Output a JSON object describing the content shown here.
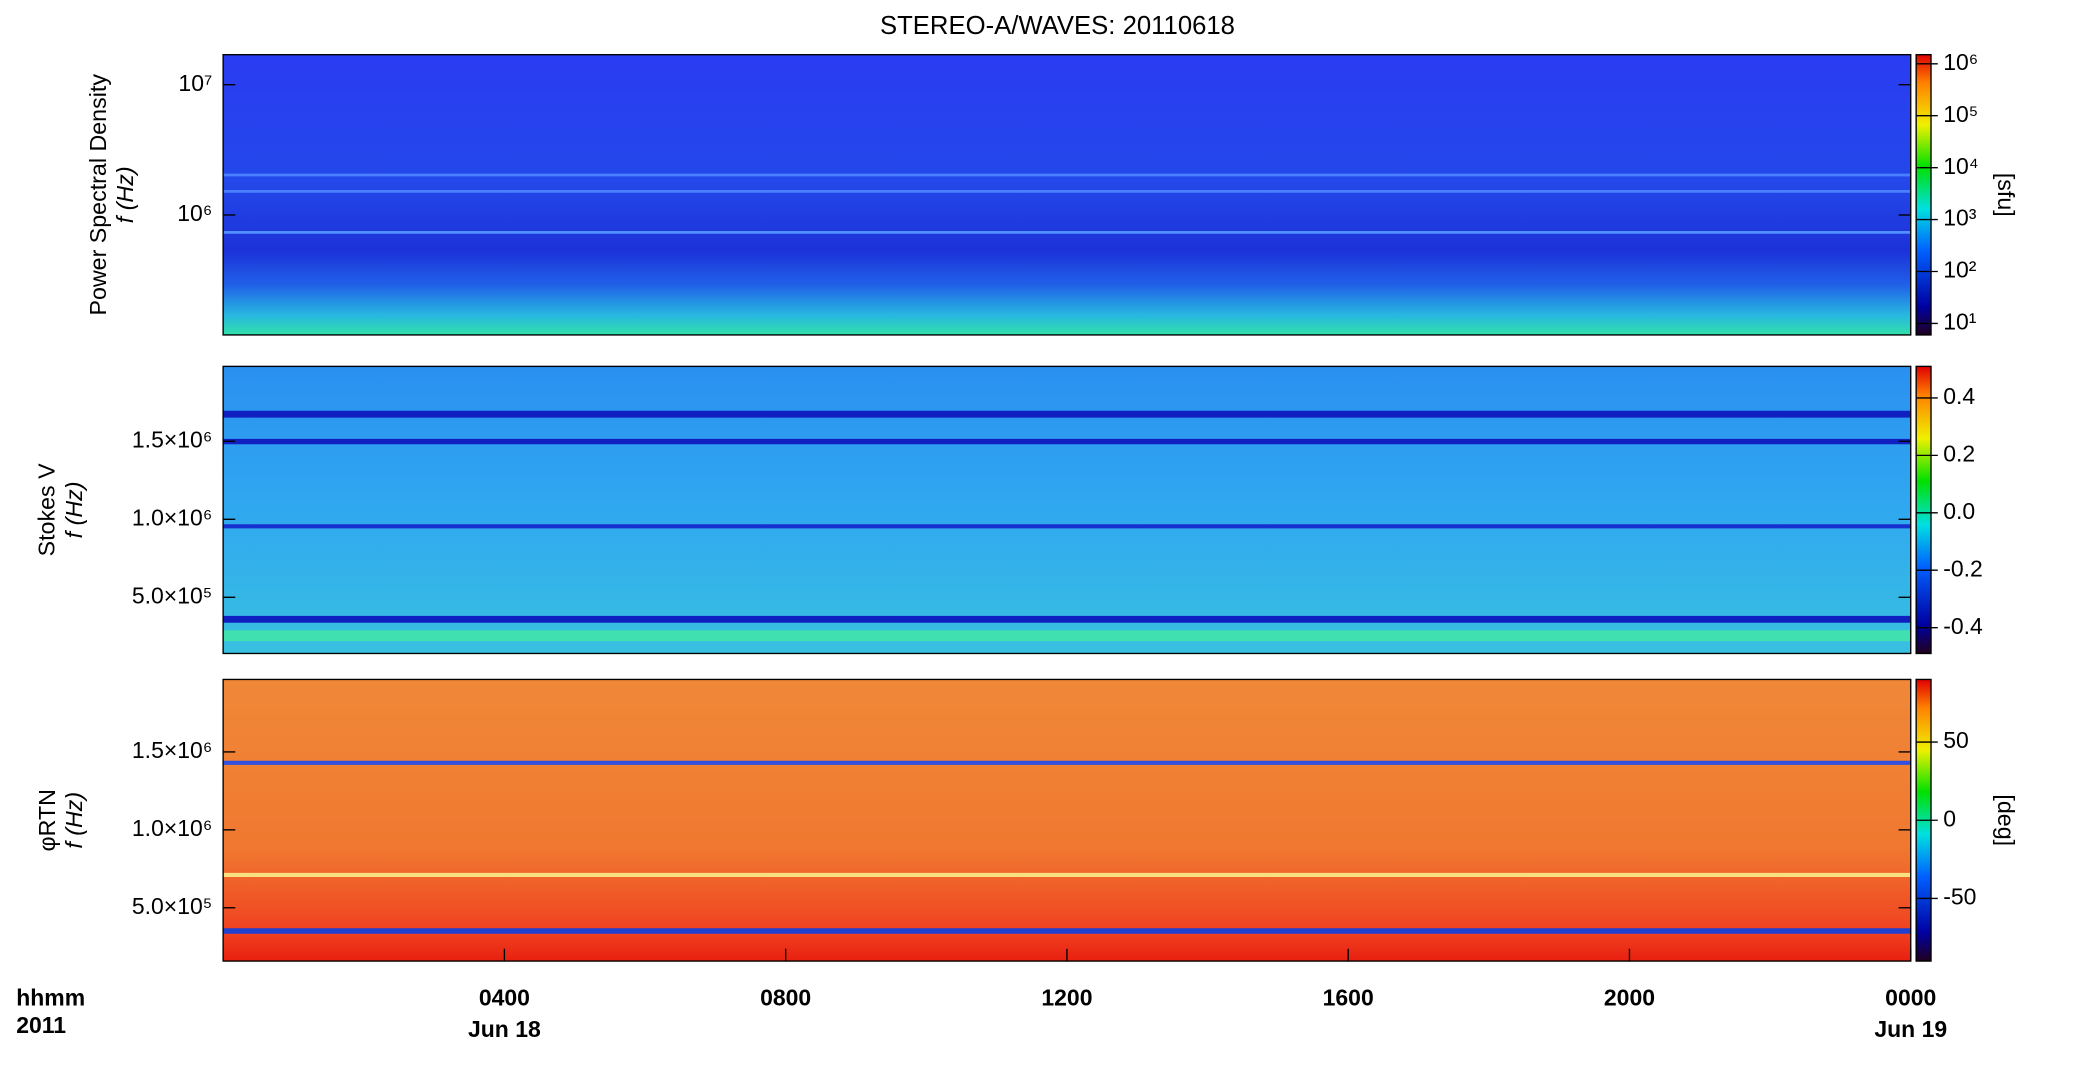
{
  "chart_data": [
    {
      "type": "spectrogram",
      "title": "STEREO-A/WAVES: 20110618",
      "ylabel": "Power Spectral Density",
      "ylabel2": "f (Hz)",
      "log": true,
      "ylim": [
        120000,
        17000000
      ],
      "yticks": [
        {
          "value": 1000000,
          "label": "10⁶"
        },
        {
          "value": 10000000,
          "label": "10⁷"
        }
      ],
      "zlog": true,
      "zlim": [
        6,
        1500000
      ],
      "zlabel": "[sfu]",
      "zticks": [
        {
          "value": 10,
          "label": "10¹"
        },
        {
          "value": 100,
          "label": "10²"
        },
        {
          "value": 1000,
          "label": "10³"
        },
        {
          "value": 10000,
          "label": "10⁴"
        },
        {
          "value": 100000,
          "label": "10⁵"
        },
        {
          "value": 1000000,
          "label": "10⁶"
        }
      ]
    },
    {
      "type": "spectrogram",
      "ylabel": "Stokes V",
      "ylabel2": "f (Hz)",
      "log": false,
      "ylim": [
        140000,
        1980000
      ],
      "yticks": [
        {
          "value": 500000,
          "label": "5.0×10⁵"
        },
        {
          "value": 1000000,
          "label": "1.0×10⁶"
        },
        {
          "value": 1500000,
          "label": "1.5×10⁶"
        }
      ],
      "zlog": false,
      "zlim": [
        -0.49,
        0.51
      ],
      "zticks": [
        -0.4,
        -0.2,
        {
          "value": 0,
          "label": "0.0"
        },
        0.2,
        0.4
      ]
    },
    {
      "type": "spectrogram",
      "ylabel": "φRTN",
      "ylabel2": "f (Hz)",
      "log": false,
      "ylim": [
        158000,
        1965000
      ],
      "yticks": [
        {
          "value": 500000,
          "label": "5.0×10⁵"
        },
        {
          "value": 1000000,
          "label": "1.0×10⁶"
        },
        {
          "value": 1500000,
          "label": "1.5×10⁶"
        }
      ],
      "zlog": false,
      "zlim": [
        -90,
        90
      ],
      "zlabel": "[deg]",
      "zticks": [
        -50,
        0,
        50
      ],
      "xlim": [
        0,
        24
      ],
      "xticks": [
        {
          "value": 4,
          "label": "0400"
        },
        {
          "value": 8,
          "label": "0800"
        },
        {
          "value": 12,
          "label": "1200"
        },
        {
          "value": 16,
          "label": "1600"
        },
        {
          "value": 20,
          "label": "2000"
        },
        {
          "value": 24,
          "label": "0000"
        }
      ],
      "xdate_ticks": [
        {
          "value": 4,
          "label": "Jun 18"
        },
        {
          "value": 24,
          "label": "Jun 19"
        }
      ],
      "xlabel": "hhmm",
      "xlabel2": "2011"
    }
  ]
}
